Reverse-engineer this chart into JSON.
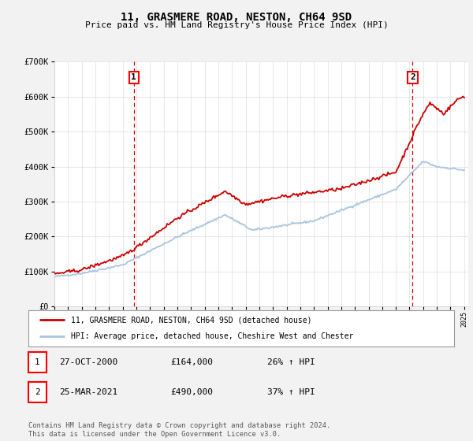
{
  "title": "11, GRASMERE ROAD, NESTON, CH64 9SD",
  "subtitle": "Price paid vs. HM Land Registry's House Price Index (HPI)",
  "x_start_year": 1995,
  "x_end_year": 2025,
  "y_min": 0,
  "y_max": 700000,
  "y_ticks": [
    0,
    100000,
    200000,
    300000,
    400000,
    500000,
    600000,
    700000
  ],
  "y_tick_labels": [
    "£0",
    "£100K",
    "£200K",
    "£300K",
    "£400K",
    "£500K",
    "£600K",
    "£700K"
  ],
  "hpi_color": "#aac4e0",
  "price_color": "#cc0000",
  "marker1_year": 2000.82,
  "marker1_price": 164000,
  "marker2_year": 2021.23,
  "marker2_price": 490000,
  "marker1_label": "1",
  "marker2_label": "2",
  "marker_vline_color": "#cc0000",
  "marker_vline_style": "--",
  "legend_line1": "11, GRASMERE ROAD, NESTON, CH64 9SD (detached house)",
  "legend_line2": "HPI: Average price, detached house, Cheshire West and Chester",
  "table_row1": [
    "1",
    "27-OCT-2000",
    "£164,000",
    "26% ↑ HPI"
  ],
  "table_row2": [
    "2",
    "25-MAR-2021",
    "£490,000",
    "37% ↑ HPI"
  ],
  "footer": "Contains HM Land Registry data © Crown copyright and database right 2024.\nThis data is licensed under the Open Government Licence v3.0.",
  "bg_color": "#f2f2f2",
  "plot_bg_color": "#ffffff",
  "grid_color": "#dddddd"
}
